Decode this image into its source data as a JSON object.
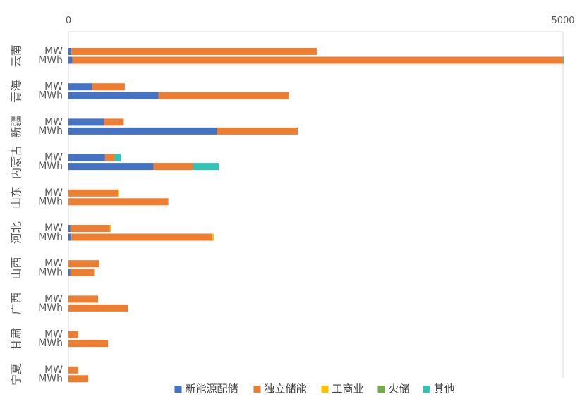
{
  "chart_data": {
    "type": "bar",
    "orientation": "horizontal",
    "stacked": true,
    "xlim": [
      0,
      5000
    ],
    "x_ticks": [
      "0",
      "5000"
    ],
    "grid": true,
    "legend_position": "bottom",
    "units": [
      "MW",
      "MWh"
    ],
    "series": [
      {
        "name": "新能源配储",
        "color": "#4472C4"
      },
      {
        "name": "独立储能",
        "color": "#ED7D31"
      },
      {
        "name": "工商业",
        "color": "#FFC000"
      },
      {
        "name": "火储",
        "color": "#70AD47"
      },
      {
        "name": "其他",
        "color": "#2EC4B6"
      }
    ],
    "groups": [
      {
        "name": "云南",
        "MW": [
          30,
          2480,
          0,
          0,
          0
        ],
        "MWh": [
          40,
          4960,
          0,
          0,
          10
        ]
      },
      {
        "name": "青海",
        "MW": [
          240,
          330,
          0,
          0,
          0
        ],
        "MWh": [
          910,
          1320,
          0,
          0,
          0
        ]
      },
      {
        "name": "新疆",
        "MW": [
          360,
          200,
          0,
          0,
          0
        ],
        "MWh": [
          1500,
          820,
          0,
          0,
          0
        ]
      },
      {
        "name": "内蒙古",
        "MW": [
          370,
          100,
          0,
          0,
          60
        ],
        "MWh": [
          860,
          400,
          0,
          0,
          260
        ]
      },
      {
        "name": "山东",
        "MW": [
          0,
          500,
          10,
          0,
          0
        ],
        "MWh": [
          0,
          1010,
          0,
          0,
          0
        ]
      },
      {
        "name": "河北",
        "MW": [
          20,
          400,
          10,
          0,
          0
        ],
        "MWh": [
          30,
          1420,
          20,
          0,
          0
        ]
      },
      {
        "name": "山西",
        "MW": [
          0,
          310,
          0,
          0,
          0
        ],
        "MWh": [
          20,
          240,
          0,
          0,
          0
        ]
      },
      {
        "name": "广西",
        "MW": [
          0,
          300,
          0,
          0,
          0
        ],
        "MWh": [
          0,
          600,
          0,
          0,
          0
        ]
      },
      {
        "name": "甘肃",
        "MW": [
          0,
          100,
          0,
          0,
          0
        ],
        "MWh": [
          0,
          400,
          0,
          0,
          0
        ]
      },
      {
        "name": "宁夏",
        "MW": [
          0,
          100,
          0,
          0,
          0
        ],
        "MWh": [
          0,
          200,
          0,
          0,
          0
        ]
      }
    ]
  }
}
